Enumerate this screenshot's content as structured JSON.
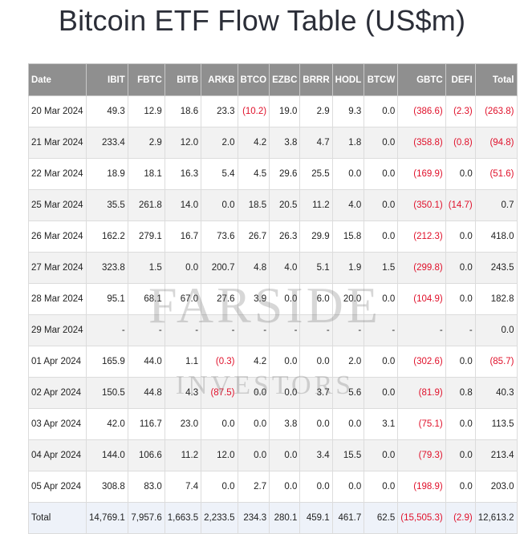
{
  "title": "Bitcoin ETF Flow Table (US$m)",
  "watermark": {
    "line1": "FARSIDE",
    "line2": "INVESTORS"
  },
  "colors": {
    "header_bg": "#8f8f8f",
    "negative": "#e0102a",
    "alt_row": "#f2f2f2",
    "total_row": "#eef2f9"
  },
  "table": {
    "headers": [
      "Date",
      "IBIT",
      "FBTC",
      "BITB",
      "ARKB",
      "BTCO",
      "EZBC",
      "BRRR",
      "HODL",
      "BTCW",
      "GBTC",
      "DEFI",
      "Total"
    ],
    "rows": [
      [
        "20 Mar 2024",
        "49.3",
        "12.9",
        "18.6",
        "23.3",
        "(10.2)",
        "19.0",
        "2.9",
        "9.3",
        "0.0",
        "(386.6)",
        "(2.3)",
        "(263.8)"
      ],
      [
        "21 Mar 2024",
        "233.4",
        "2.9",
        "12.0",
        "2.0",
        "4.2",
        "3.8",
        "4.7",
        "1.8",
        "0.0",
        "(358.8)",
        "(0.8)",
        "(94.8)"
      ],
      [
        "22 Mar 2024",
        "18.9",
        "18.1",
        "16.3",
        "5.4",
        "4.5",
        "29.6",
        "25.5",
        "0.0",
        "0.0",
        "(169.9)",
        "0.0",
        "(51.6)"
      ],
      [
        "25 Mar 2024",
        "35.5",
        "261.8",
        "14.0",
        "0.0",
        "18.5",
        "20.5",
        "11.2",
        "4.0",
        "0.0",
        "(350.1)",
        "(14.7)",
        "0.7"
      ],
      [
        "26 Mar 2024",
        "162.2",
        "279.1",
        "16.7",
        "73.6",
        "26.7",
        "26.3",
        "29.9",
        "15.8",
        "0.0",
        "(212.3)",
        "0.0",
        "418.0"
      ],
      [
        "27 Mar 2024",
        "323.8",
        "1.5",
        "0.0",
        "200.7",
        "4.8",
        "4.0",
        "5.1",
        "1.9",
        "1.5",
        "(299.8)",
        "0.0",
        "243.5"
      ],
      [
        "28 Mar 2024",
        "95.1",
        "68.1",
        "67.0",
        "27.6",
        "3.9",
        "0.0",
        "6.0",
        "20.0",
        "0.0",
        "(104.9)",
        "0.0",
        "182.8"
      ],
      [
        "29 Mar 2024",
        "-",
        "-",
        "-",
        "-",
        "-",
        "-",
        "-",
        "-",
        "-",
        "-",
        "-",
        "0.0"
      ],
      [
        "01 Apr 2024",
        "165.9",
        "44.0",
        "1.1",
        "(0.3)",
        "4.2",
        "0.0",
        "0.0",
        "2.0",
        "0.0",
        "(302.6)",
        "0.0",
        "(85.7)"
      ],
      [
        "02 Apr 2024",
        "150.5",
        "44.8",
        "4.3",
        "(87.5)",
        "0.0",
        "0.0",
        "3.7",
        "5.6",
        "0.0",
        "(81.9)",
        "0.8",
        "40.3"
      ],
      [
        "03 Apr 2024",
        "42.0",
        "116.7",
        "23.0",
        "0.0",
        "0.0",
        "3.8",
        "0.0",
        "0.0",
        "3.1",
        "(75.1)",
        "0.0",
        "113.5"
      ],
      [
        "04 Apr 2024",
        "144.0",
        "106.6",
        "11.2",
        "12.0",
        "0.0",
        "0.0",
        "3.4",
        "15.5",
        "0.0",
        "(79.3)",
        "0.0",
        "213.4"
      ],
      [
        "05 Apr 2024",
        "308.8",
        "83.0",
        "7.4",
        "0.0",
        "2.7",
        "0.0",
        "0.0",
        "0.0",
        "0.0",
        "(198.9)",
        "0.0",
        "203.0"
      ]
    ],
    "total": [
      "Total",
      "14,769.1",
      "7,957.6",
      "1,663.5",
      "2,233.5",
      "234.3",
      "280.1",
      "459.1",
      "461.7",
      "62.5",
      "(15,505.3)",
      "(2.9)",
      "12,613.2"
    ]
  }
}
